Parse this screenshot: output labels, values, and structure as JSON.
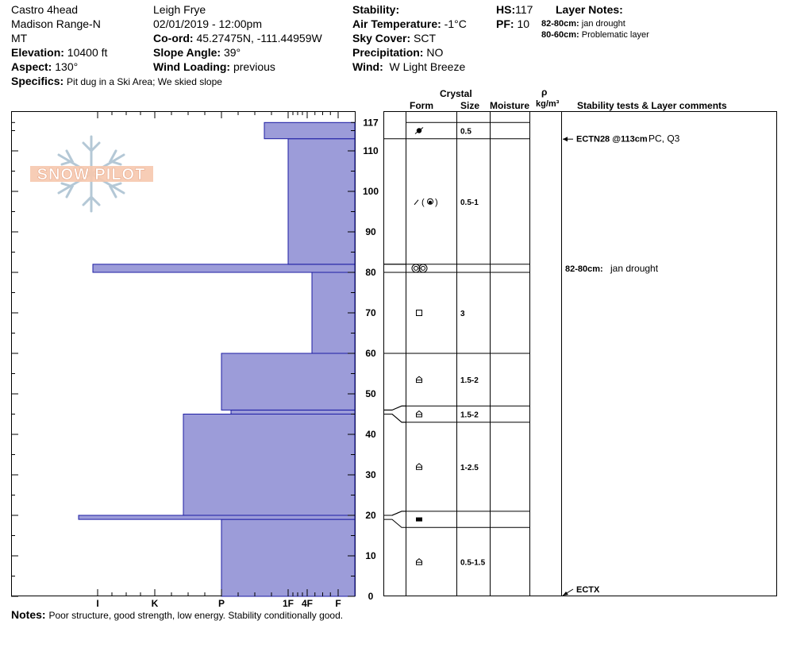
{
  "header": {
    "location": "Castro 4head",
    "range": "Madison Range-N",
    "state": "MT",
    "elevation_label": "Elevation:",
    "elevation_value": "10400 ft",
    "aspect_label": "Aspect:",
    "aspect_value": "130°",
    "specifics_label": "Specifics:",
    "specifics_value": "Pit dug in a Ski Area; We skied slope",
    "observer": "Leigh Frye",
    "datetime": "02/01/2019 - 12:00pm",
    "coord_label": "Co-ord:",
    "coord_value": "45.27475N, -111.44959W",
    "slope_label": "Slope Angle:",
    "slope_value": "39°",
    "wind_loading_label": "Wind Loading:",
    "wind_loading_value": "previous",
    "stability_label": "Stability:",
    "air_temp_label": "Air Temperature:",
    "air_temp_value": "-1°C",
    "sky_label": "Sky Cover:",
    "sky_value": "SCT",
    "precip_label": "Precipitation:",
    "precip_value": "NO",
    "wind_label": "Wind:",
    "wind_value": "W Light Breeze",
    "hs_label": "HS:",
    "hs_value": "117",
    "pf_label": "PF:",
    "pf_value": "10",
    "layer_notes_label": "Layer Notes:",
    "layer_notes": [
      {
        "range": "82-80cm:",
        "text": "jan drought"
      },
      {
        "range": "80-60cm:",
        "text": "Problematic layer"
      }
    ]
  },
  "watermark": "SNOW PILOT",
  "columns": {
    "crystal": "Crystal",
    "form": "Form",
    "size": "Size",
    "moisture": "Moisture",
    "rho": "ρ",
    "density_unit": "kg/m³",
    "comments": "Stability tests & Layer comments"
  },
  "notes_label": "Notes:",
  "notes_value": "Poor structure, good strength, low energy. Stability conditionally good.",
  "chart_data": {
    "type": "bar",
    "orientation": "horizontal",
    "y_range": [
      0,
      117
    ],
    "y_ticks": [
      0,
      10,
      20,
      30,
      40,
      50,
      60,
      70,
      80,
      90,
      100,
      110,
      117
    ],
    "hardness_scale": [
      "I",
      "K",
      "P",
      "1F",
      "4F",
      "F"
    ],
    "hardness_tick_values": [
      5.4,
      4.2,
      2.8,
      1.4,
      1.0,
      0.35
    ],
    "hardness_layers": [
      {
        "bottom": 0,
        "top": 19,
        "hardness": 2.8
      },
      {
        "bottom": 19,
        "top": 20,
        "hardness": 5.8
      },
      {
        "bottom": 20,
        "top": 45,
        "hardness": 3.6
      },
      {
        "bottom": 45,
        "top": 46,
        "hardness": 2.6
      },
      {
        "bottom": 46,
        "top": 60,
        "hardness": 2.8
      },
      {
        "bottom": 60,
        "top": 80,
        "hardness": 0.9
      },
      {
        "bottom": 80,
        "top": 82,
        "hardness": 5.5
      },
      {
        "bottom": 82,
        "top": 113,
        "hardness": 1.4
      },
      {
        "bottom": 113,
        "top": 117,
        "hardness": 1.9
      }
    ],
    "layer_table": [
      {
        "bottom": 113,
        "top": 117,
        "form": "faceted-rounded",
        "size": "0.5"
      },
      {
        "bottom": 82,
        "top": 113,
        "form": "decomposing-rounded",
        "size": "0.5-1"
      },
      {
        "bottom": 80,
        "top": 82,
        "form": "melt-forms",
        "size": ""
      },
      {
        "bottom": 60,
        "top": 80,
        "form": "faceted",
        "size": "3"
      },
      {
        "bottom": 47,
        "top": 60,
        "form": "depth-hoar",
        "size": "1.5-2"
      },
      {
        "bottom": 43,
        "top": 47,
        "form": "depth-hoar",
        "size": "1.5-2"
      },
      {
        "bottom": 21,
        "top": 43,
        "form": "depth-hoar",
        "size": "1-2.5"
      },
      {
        "bottom": 17,
        "top": 21,
        "form": "ice-layer",
        "size": ""
      },
      {
        "bottom": 0,
        "top": 17,
        "form": "depth-hoar",
        "size": "0.5-1.5"
      }
    ],
    "boundary_links": [
      {
        "layer_top": 113,
        "layer_bottom": 82,
        "profile_top": 113,
        "profile_bottom": 82
      },
      {
        "layer_top": 82,
        "layer_bottom": 80,
        "profile_top": 82,
        "profile_bottom": 80
      },
      {
        "layer_top": 80,
        "layer_bottom": 60,
        "profile_top": 80,
        "profile_bottom": 60
      },
      {
        "layer_top": 60,
        "layer_bottom": 47,
        "profile_top": 60,
        "profile_bottom": 46
      },
      {
        "layer_top": 47,
        "layer_bottom": 43,
        "profile_top": 46,
        "profile_bottom": 45
      },
      {
        "layer_top": 43,
        "layer_bottom": 21,
        "profile_top": 45,
        "profile_bottom": 20
      },
      {
        "layer_top": 21,
        "layer_bottom": 17,
        "profile_top": 20,
        "profile_bottom": 19
      }
    ],
    "stability_tests": [
      {
        "depth": 113,
        "code": "ECTN28 @113cm",
        "result": "PC, Q3"
      },
      {
        "depth": 0,
        "code": "ECTX",
        "result": ""
      }
    ],
    "layer_comments": [
      {
        "depth": 81,
        "range": "82-80cm:",
        "text": "jan drought"
      }
    ]
  }
}
